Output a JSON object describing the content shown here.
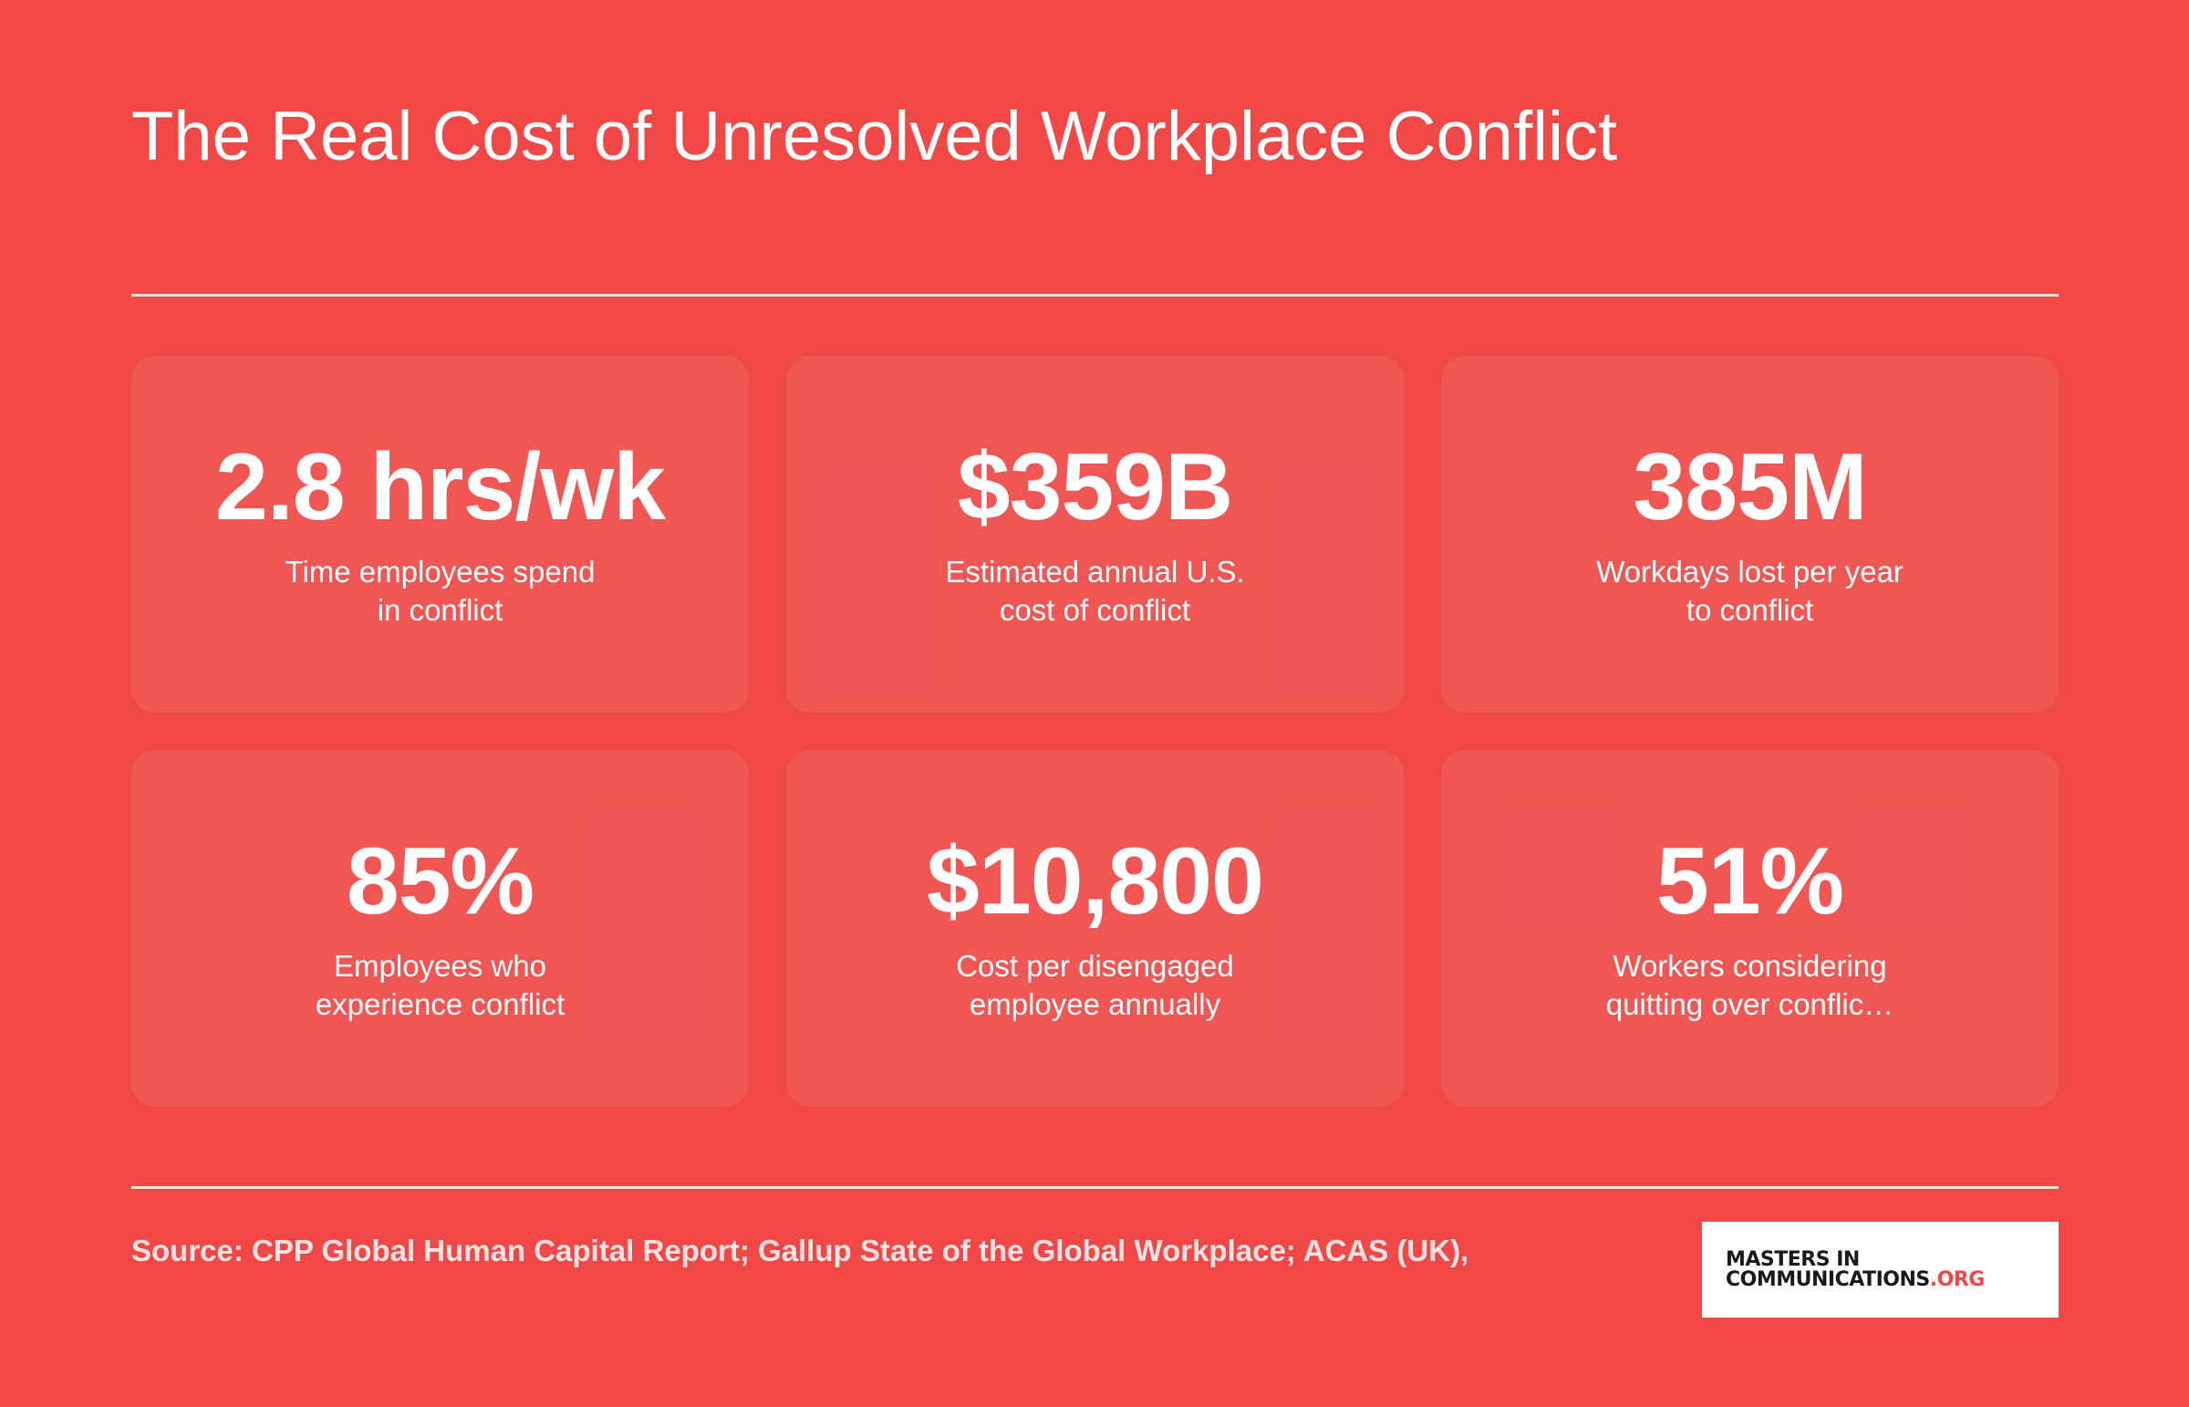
{
  "header": {
    "title": "The Real Cost of Unresolved Workplace Conflict"
  },
  "stats": [
    {
      "value": "2.8 hrs/wk",
      "label_line1": "Time employees spend",
      "label_line2": "in conflict"
    },
    {
      "value": "$359B",
      "label_line1": "Estimated annual U.S.",
      "label_line2": "cost of conflict"
    },
    {
      "value": "385M",
      "label_line1": "Workdays lost per year",
      "label_line2": "to conflict"
    },
    {
      "value": "85%",
      "label_line1": "Employees who",
      "label_line2": "experience conflict"
    },
    {
      "value": "$10,800",
      "label_line1": "Cost per disengaged",
      "label_line2": "employee annually"
    },
    {
      "value": "51%",
      "label_line1": "Workers considering",
      "label_line2": "quitting over conflic…"
    }
  ],
  "footer": {
    "source": "Source: CPP Global Human Capital Report; Gallup State of the Global Workplace; ACAS (UK),",
    "logo_line1": "MASTERS IN",
    "logo_line2": "COMMUNICATIONS",
    "logo_suffix": ".ORG"
  },
  "colors": {
    "background": "#ef4846",
    "text": "#ffffff",
    "logo_accent": "#ef4846"
  }
}
